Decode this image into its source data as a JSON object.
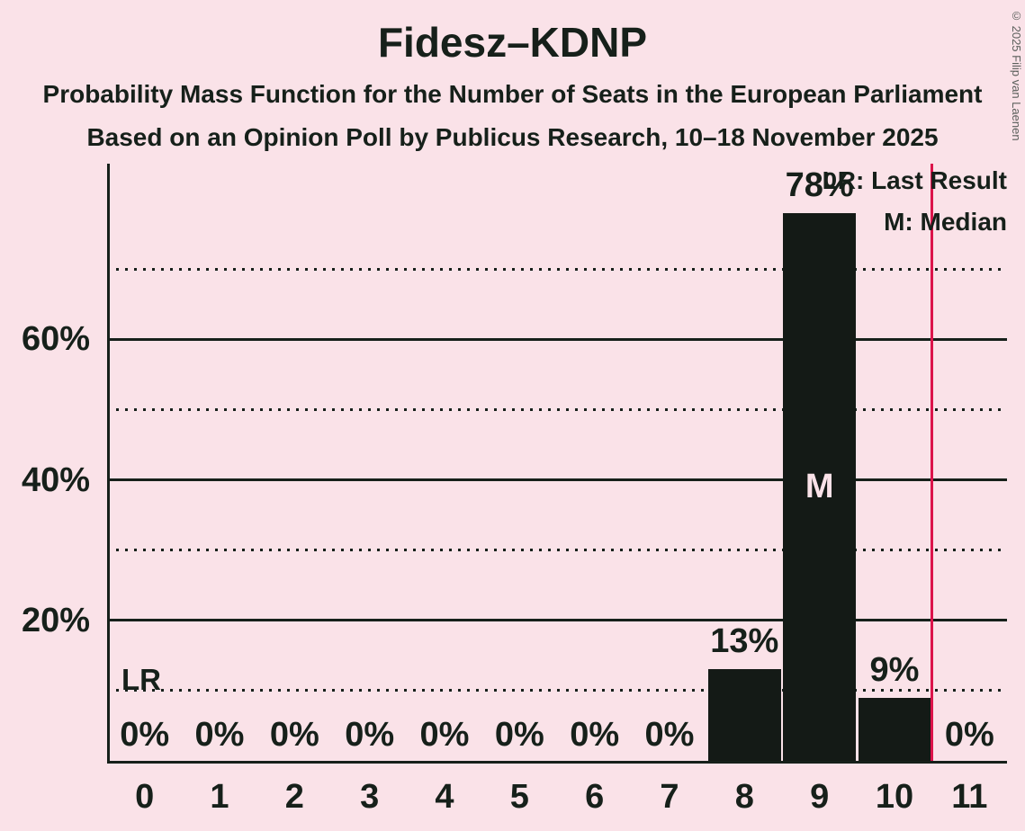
{
  "title": "Fidesz–KDNP",
  "subtitle1": "Probability Mass Function for the Number of Seats in the European Parliament",
  "subtitle2": "Based on an Opinion Poll by Publicus Research, 10–18 November 2025",
  "copyright": "© 2025 Filip van Laenen",
  "legend": {
    "lr": "LR: Last Result",
    "m": "M: Median"
  },
  "colors": {
    "background": "#fae2e8",
    "text": "#16201a",
    "bar": "#141a16",
    "median_text": "#fae2e8",
    "last_result_line": "#dc144b"
  },
  "chart_data": {
    "type": "bar",
    "title": "Fidesz–KDNP",
    "categories": [
      "0",
      "1",
      "2",
      "3",
      "4",
      "5",
      "6",
      "7",
      "8",
      "9",
      "10",
      "11"
    ],
    "values": [
      0,
      0,
      0,
      0,
      0,
      0,
      0,
      0,
      13,
      78,
      9,
      0
    ],
    "bar_labels": [
      "0%",
      "0%",
      "0%",
      "0%",
      "0%",
      "0%",
      "0%",
      "0%",
      "13%",
      "78%",
      "9%",
      "0%"
    ],
    "ylim": [
      0,
      85
    ],
    "yticks": [
      {
        "value": 20,
        "label": "20%"
      },
      {
        "value": 40,
        "label": "40%"
      },
      {
        "value": 60,
        "label": "60%"
      }
    ],
    "solid_gridlines": [
      20,
      40,
      60
    ],
    "dotted_gridlines": [
      10,
      30,
      50,
      70
    ],
    "grid": true,
    "legend_position": "top-right",
    "median_category": "9",
    "median_marker": "M",
    "last_result_marker": "LR",
    "last_result_line_between": [
      "10",
      "11"
    ]
  }
}
